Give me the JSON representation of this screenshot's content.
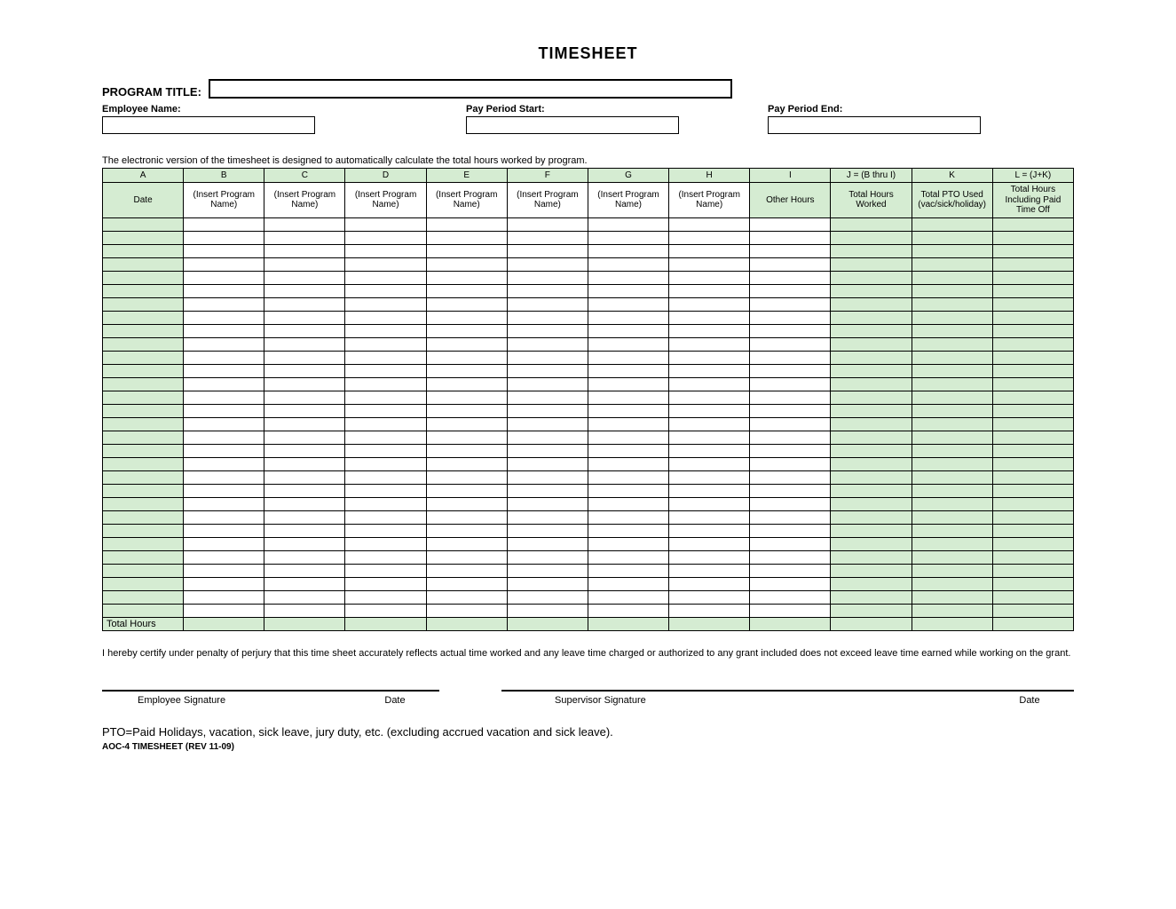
{
  "title": "TIMESHEET",
  "header": {
    "program_title_label": "PROGRAM TITLE:",
    "program_title_value": "",
    "employee_name_label": "Employee Name:",
    "employee_name_value": "",
    "pay_period_start_label": "Pay Period Start:",
    "pay_period_start_value": "",
    "pay_period_end_label": "Pay Period End:",
    "pay_period_end_value": ""
  },
  "note": "The electronic version of the timesheet is designed to automatically calculate the total hours worked by program.",
  "table": {
    "column_letters": [
      "A",
      "B",
      "C",
      "D",
      "E",
      "F",
      "G",
      "H",
      "I",
      "J = (B thru I)",
      "K",
      "L = (J+K)"
    ],
    "column_headers": [
      "Date",
      "(Insert Program Name)",
      "(Insert Program Name)",
      "(Insert Program Name)",
      "(Insert Program Name)",
      "(Insert Program Name)",
      "(Insert Program Name)",
      "(Insert Program Name)",
      "Other Hours",
      "Total Hours Worked",
      "Total PTO Used (vac/sick/holiday)",
      "Total Hours Including Paid Time Off"
    ],
    "green_header_cols": [
      0,
      8,
      9,
      10,
      11
    ],
    "green_body_cols": [
      0,
      9,
      10,
      11
    ],
    "data_row_count": 30,
    "tall_row_index": 29,
    "total_row_label": "Total Hours",
    "colors": {
      "header_fill": "#d5ecd2",
      "border": "#000000",
      "background": "#ffffff"
    }
  },
  "certification": "I hereby certify under penalty of perjury that this time sheet accurately reflects actual time worked and any leave time charged or authorized to any grant included does not exceed leave time earned while working on the grant.",
  "signatures": {
    "employee_label": "Employee Signature",
    "employee_date_label": "Date",
    "supervisor_label": "Supervisor Signature",
    "supervisor_date_label": "Date"
  },
  "pto_note": "PTO=Paid Holidays, vacation, sick leave, jury duty, etc. (excluding accrued vacation and sick leave).",
  "doc_id": "AOC-4 TIMESHEET (REV 11-09)"
}
